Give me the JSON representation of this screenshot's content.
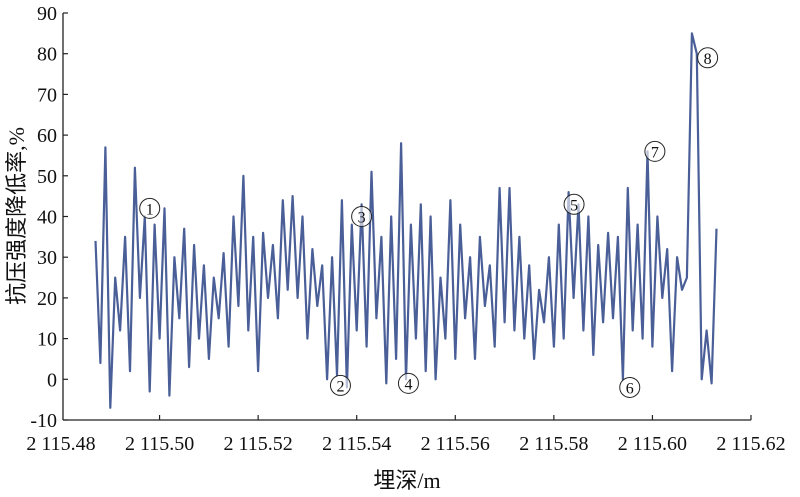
{
  "chart_data": {
    "type": "line",
    "title": "",
    "xlabel": "埋深/m",
    "ylabel": "抗压强度降低率,%",
    "xlim": [
      2115.48,
      2115.62
    ],
    "ylim": [
      -10,
      90
    ],
    "xticks": [
      2115.48,
      2115.5,
      2115.52,
      2115.54,
      2115.56,
      2115.58,
      2115.6,
      2115.62
    ],
    "xtick_labels": [
      "2 115.48",
      "2 115.50",
      "2 115.52",
      "2 115.54",
      "2 115.56",
      "2 115.58",
      "2 115.60",
      "2 115.62"
    ],
    "yticks": [
      -10,
      0,
      10,
      20,
      30,
      40,
      50,
      60,
      70,
      80,
      90
    ],
    "ytick_labels": [
      "-10",
      "0",
      "10",
      "20",
      "30",
      "40",
      "50",
      "60",
      "70",
      "80",
      "90"
    ],
    "grid": false,
    "line_color": "#4a5f98",
    "series": [
      {
        "x": [
          2115.487,
          2115.488,
          2115.489,
          2115.49,
          2115.491,
          2115.492,
          2115.493,
          2115.494,
          2115.495,
          2115.496,
          2115.497,
          2115.498,
          2115.499,
          2115.5,
          2115.501,
          2115.502,
          2115.503,
          2115.504,
          2115.505,
          2115.506,
          2115.507,
          2115.508,
          2115.509,
          2115.51,
          2115.511,
          2115.512,
          2115.513,
          2115.514,
          2115.515,
          2115.516,
          2115.517,
          2115.518,
          2115.519,
          2115.52,
          2115.521,
          2115.522,
          2115.523,
          2115.524,
          2115.525,
          2115.526,
          2115.527,
          2115.528,
          2115.529,
          2115.53,
          2115.531,
          2115.532,
          2115.533,
          2115.534,
          2115.535,
          2115.536,
          2115.537,
          2115.538,
          2115.539,
          2115.54,
          2115.541,
          2115.542,
          2115.543,
          2115.544,
          2115.545,
          2115.546,
          2115.547,
          2115.548,
          2115.549,
          2115.55,
          2115.551,
          2115.552,
          2115.553,
          2115.554,
          2115.555,
          2115.556,
          2115.557,
          2115.558,
          2115.559,
          2115.56,
          2115.561,
          2115.562,
          2115.563,
          2115.564,
          2115.565,
          2115.566,
          2115.567,
          2115.568,
          2115.569,
          2115.57,
          2115.571,
          2115.572,
          2115.573,
          2115.574,
          2115.575,
          2115.576,
          2115.577,
          2115.578,
          2115.579,
          2115.58,
          2115.581,
          2115.582,
          2115.583,
          2115.584,
          2115.585,
          2115.586,
          2115.587,
          2115.588,
          2115.589,
          2115.59,
          2115.591,
          2115.592,
          2115.593,
          2115.594,
          2115.595,
          2115.596,
          2115.597,
          2115.598,
          2115.599,
          2115.6,
          2115.601,
          2115.602,
          2115.603,
          2115.604,
          2115.605,
          2115.606,
          2115.607,
          2115.608,
          2115.609,
          2115.61,
          2115.611,
          2115.612,
          2115.613
        ],
        "y": [
          34,
          4,
          57,
          -7,
          25,
          12,
          35,
          2,
          52,
          20,
          40,
          -3,
          38,
          10,
          42,
          -4,
          30,
          15,
          37,
          3,
          33,
          10,
          28,
          5,
          25,
          15,
          31,
          8,
          40,
          18,
          50,
          12,
          35,
          2,
          36,
          20,
          33,
          15,
          44,
          22,
          45,
          20,
          40,
          10,
          32,
          18,
          28,
          0,
          30,
          1,
          44,
          -2,
          38,
          12,
          43,
          8,
          51,
          15,
          35,
          -1,
          40,
          5,
          58,
          0,
          38,
          10,
          43,
          2,
          40,
          0,
          25,
          10,
          44,
          5,
          38,
          15,
          30,
          5,
          35,
          18,
          28,
          8,
          47,
          14,
          47,
          12,
          35,
          10,
          28,
          5,
          22,
          14,
          30,
          8,
          38,
          10,
          46,
          20,
          43,
          12,
          40,
          6,
          33,
          14,
          36,
          15,
          35,
          0,
          47,
          12,
          38,
          10,
          56,
          8,
          40,
          20,
          32,
          2,
          30,
          22,
          25,
          85,
          80,
          0,
          12,
          -1,
          37
        ]
      }
    ],
    "annotations": [
      {
        "label": "①",
        "x": 2115.498,
        "y": 42
      },
      {
        "label": "②",
        "x": 2115.5367,
        "y": -1.5
      },
      {
        "label": "③",
        "x": 2115.541,
        "y": 40
      },
      {
        "label": "④",
        "x": 2115.5505,
        "y": -1
      },
      {
        "label": "⑤",
        "x": 2115.5841,
        "y": 43
      },
      {
        "label": "⑥",
        "x": 2115.5954,
        "y": -2
      },
      {
        "label": "⑦",
        "x": 2115.6005,
        "y": 56
      },
      {
        "label": "⑧",
        "x": 2115.6112,
        "y": 79
      }
    ]
  }
}
